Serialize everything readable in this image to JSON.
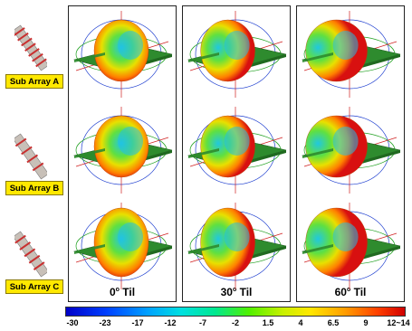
{
  "rows": [
    {
      "label": "Sub Array A"
    },
    {
      "label": "Sub Array B"
    },
    {
      "label": "Sub Array C"
    }
  ],
  "columns": [
    {
      "label": "0",
      "suffix": "Til"
    },
    {
      "label": "30",
      "suffix": "Til"
    },
    {
      "label": "60",
      "suffix": "Til"
    }
  ],
  "colorbar": {
    "ticks": [
      "-30",
      "-23",
      "-17",
      "-12",
      "-7",
      "-2",
      "1.5",
      "4",
      "6.5",
      "9",
      "12~14"
    ]
  },
  "colors": {
    "board": "#2e8b2e",
    "label_bg": "#ffe800",
    "axis_red": "#d02020",
    "axis_blue": "#2040d0",
    "axis_green": "#20a020"
  }
}
